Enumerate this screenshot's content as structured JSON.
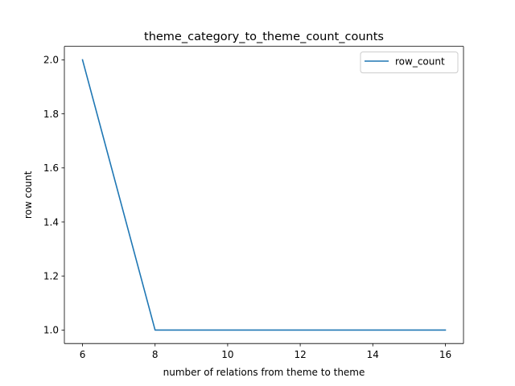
{
  "chart_data": {
    "type": "line",
    "title": "theme_category_to_theme_count_counts",
    "xlabel": "number of relations from theme to theme",
    "ylabel": "row count",
    "x": [
      6,
      8,
      16
    ],
    "series": [
      {
        "name": "row_count",
        "values": [
          2.0,
          1.0,
          1.0
        ],
        "color": "#1f77b4"
      }
    ],
    "xlim": [
      5.5,
      16.5
    ],
    "ylim": [
      0.95,
      2.05
    ],
    "xticks": [
      6,
      8,
      10,
      12,
      14,
      16
    ],
    "xtick_labels": [
      "6",
      "8",
      "10",
      "12",
      "14",
      "16"
    ],
    "yticks": [
      1.0,
      1.2,
      1.4,
      1.6,
      1.8,
      2.0
    ],
    "ytick_labels": [
      "1.0",
      "1.2",
      "1.4",
      "1.6",
      "1.8",
      "2.0"
    ],
    "grid": false,
    "legend": "top-right"
  }
}
